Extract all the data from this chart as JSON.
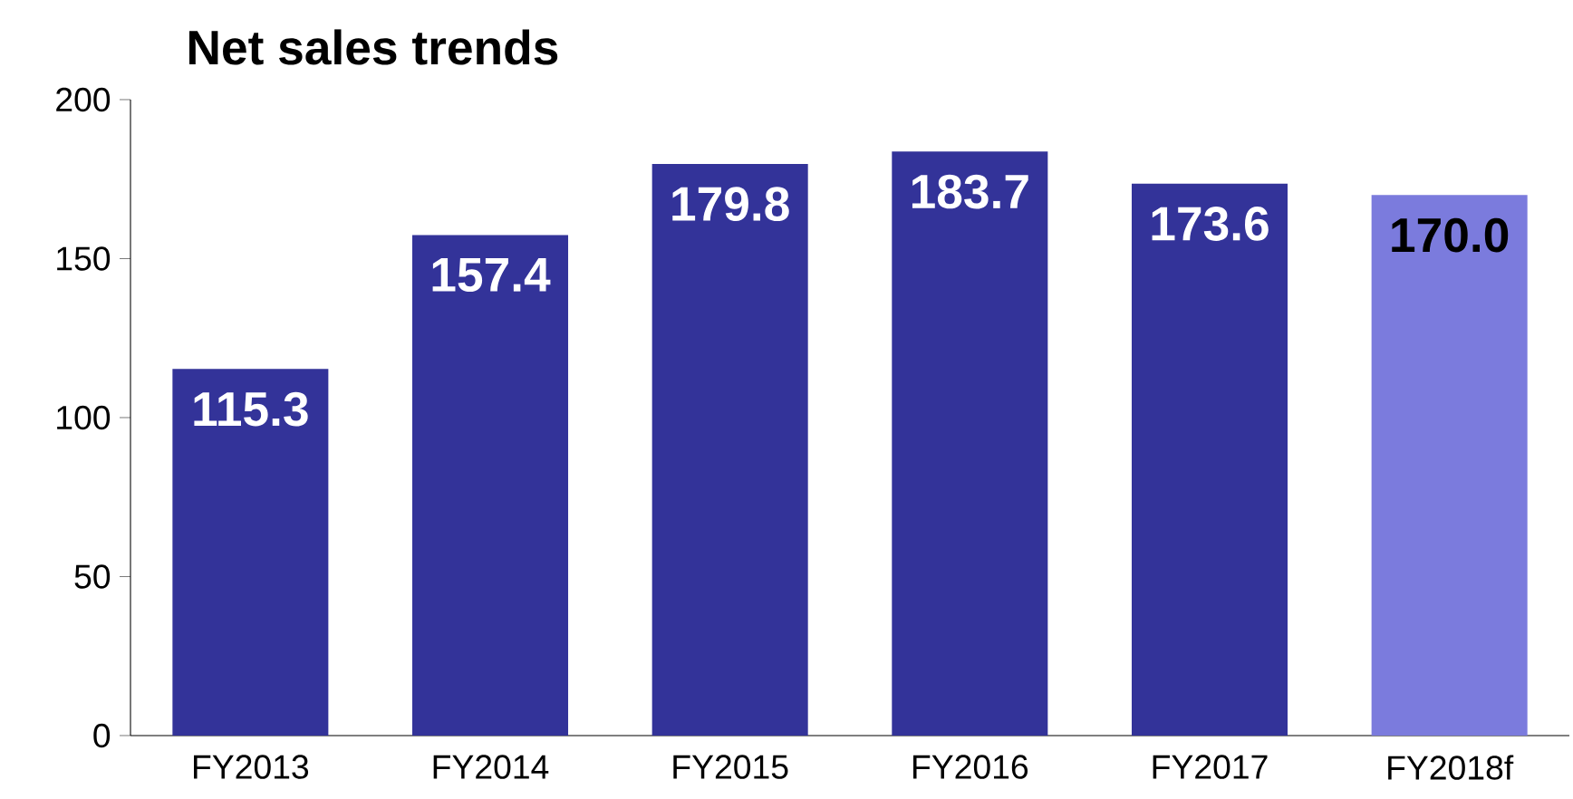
{
  "chart_data": {
    "type": "bar",
    "title": "Net sales trends",
    "categories": [
      "FY2013",
      "FY2014",
      "FY2015",
      "FY2016",
      "FY2017",
      "FY2018f"
    ],
    "values": [
      115.3,
      157.4,
      179.8,
      183.7,
      173.6,
      170.0
    ],
    "colors": [
      "#333399",
      "#333399",
      "#333399",
      "#333399",
      "#333399",
      "#7b7bdd"
    ],
    "ylim": [
      0,
      200
    ],
    "yticks": [
      0,
      50,
      100,
      150,
      200
    ],
    "value_labels": [
      "115.3",
      "157.4",
      "179.8",
      "183.7",
      "173.6",
      "170.0"
    ],
    "grid": false
  }
}
